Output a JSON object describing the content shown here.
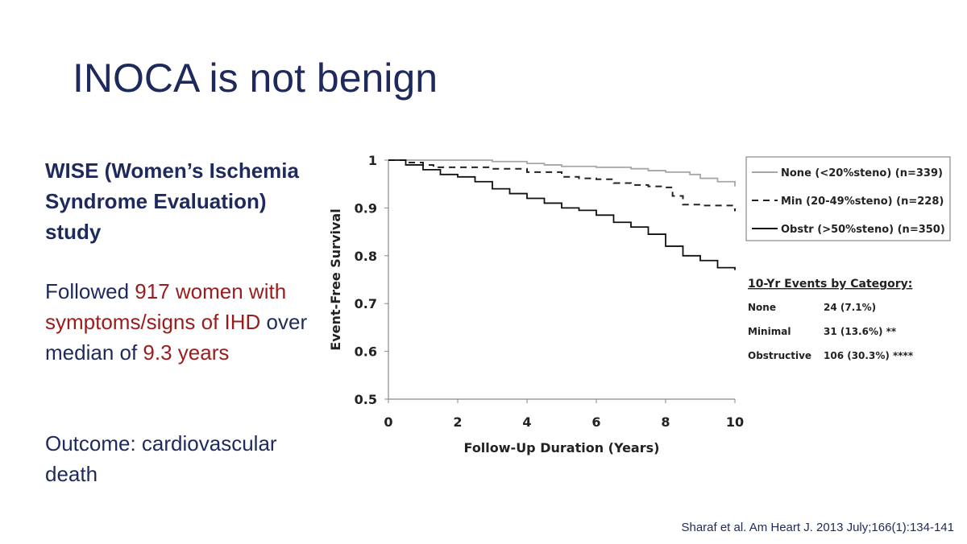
{
  "slide": {
    "title": "INOCA is not benign",
    "study": "WISE (Women’s Ischemia Syndrome Evaluation) study",
    "followed": {
      "prefix": "Followed ",
      "highlight": "917 women with symptoms/signs of IHD",
      "middle": " over median of ",
      "years": "9.3 years"
    },
    "outcome": "Outcome: cardiovascular death",
    "citation": "Sharaf et al. Am Heart J. 2013 July;166(1):134-141"
  },
  "chart_data": {
    "type": "line",
    "xlabel": "Follow-Up Duration (Years)",
    "ylabel": "Event-Free Survival",
    "xlim": [
      0,
      10
    ],
    "ylim": [
      0.5,
      1
    ],
    "x_ticks": [
      "0",
      "2",
      "4",
      "6",
      "8",
      "10"
    ],
    "y_ticks": [
      "1",
      "0.9",
      "0.8",
      "0.7",
      "0.6",
      "0.5"
    ],
    "legend_position": "right",
    "series": [
      {
        "name": "None (<20%steno) (n=339)",
        "color": "#a6a6a6",
        "dash": "solid",
        "x": [
          0,
          1,
          2,
          3,
          4,
          4.5,
          5,
          6,
          7,
          7.5,
          8,
          8.7,
          9,
          9.5,
          10
        ],
        "y": [
          1,
          1,
          1,
          0.997,
          0.993,
          0.99,
          0.987,
          0.985,
          0.982,
          0.978,
          0.975,
          0.97,
          0.962,
          0.955,
          0.945
        ]
      },
      {
        "name": "Min (20-49%steno) (n=228)",
        "color": "#222222",
        "dash": "dashed",
        "x": [
          0,
          0.5,
          1,
          1.3,
          2,
          3,
          4,
          5,
          5.5,
          6,
          6.5,
          7,
          7.5,
          8,
          8.2,
          8.5,
          9,
          9.5,
          10
        ],
        "y": [
          1,
          0.995,
          0.99,
          0.985,
          0.985,
          0.982,
          0.975,
          0.965,
          0.962,
          0.96,
          0.952,
          0.948,
          0.945,
          0.943,
          0.925,
          0.907,
          0.905,
          0.905,
          0.893
        ]
      },
      {
        "name": "Obstr (>50%steno) (n=350)",
        "color": "#111111",
        "dash": "solid",
        "x": [
          0,
          0.5,
          1,
          1.5,
          2,
          2.5,
          3,
          3.5,
          4,
          4.5,
          5,
          5.5,
          6,
          6.5,
          7,
          7.5,
          8,
          8.5,
          9,
          9.5,
          10
        ],
        "y": [
          1,
          0.99,
          0.98,
          0.97,
          0.965,
          0.955,
          0.94,
          0.93,
          0.92,
          0.91,
          0.9,
          0.895,
          0.885,
          0.87,
          0.86,
          0.845,
          0.82,
          0.8,
          0.79,
          0.775,
          0.77
        ]
      }
    ],
    "events_table": {
      "title": "10-Yr Events by Category:",
      "rows": [
        {
          "category": "None",
          "value": "24 (7.1%)"
        },
        {
          "category": "Minimal",
          "value": "31 (13.6%) **"
        },
        {
          "category": "Obstructive",
          "value": "106 (30.3%) ****"
        }
      ]
    }
  }
}
